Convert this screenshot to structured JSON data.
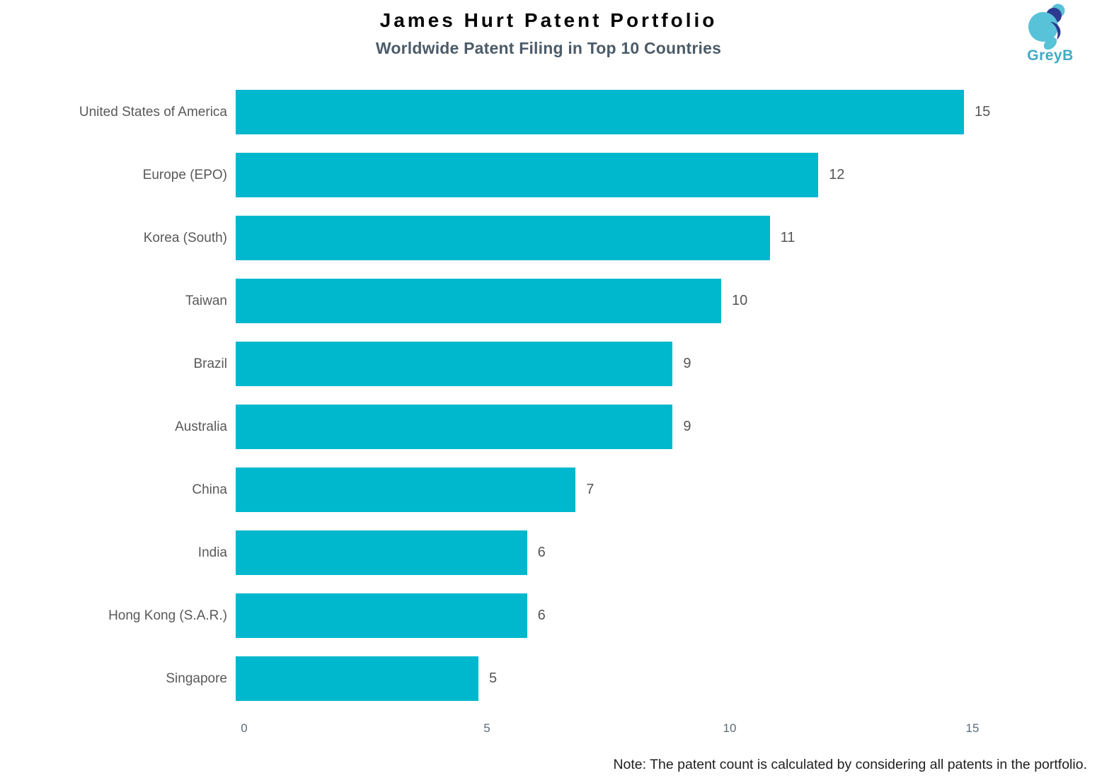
{
  "header": {
    "title": "James Hurt Patent Portfolio",
    "subtitle": "Worldwide Patent Filing in Top 10 Countries",
    "logo_text": "GreyB"
  },
  "chart_data": {
    "type": "bar",
    "orientation": "horizontal",
    "title": "James Hurt Patent Portfolio",
    "subtitle": "Worldwide Patent Filing in Top 10 Countries",
    "categories": [
      "United States of America",
      "Europe (EPO)",
      "Korea (South)",
      "Taiwan",
      "Brazil",
      "Australia",
      "China",
      "India",
      "Hong Kong (S.A.R.)",
      "Singapore"
    ],
    "values": [
      15,
      12,
      11,
      10,
      9,
      9,
      7,
      6,
      6,
      5
    ],
    "x_ticks": [
      0,
      5,
      10,
      15
    ],
    "xlim": [
      0,
      15
    ],
    "xlabel": "",
    "ylabel": "",
    "grid": false,
    "legend": false,
    "bar_color": "#00B8CD"
  },
  "note": "Note: The patent count is calculated by considering all patents in the portfolio.",
  "colors": {
    "bar": "#00B8CD",
    "title": "#050505",
    "subtitle": "#4c5b68",
    "category_label": "#595959",
    "value_label": "#565656",
    "tick": "#5b6b7a",
    "logo_light_blue": "#57C2D8",
    "logo_navy": "#2D3A8F",
    "logo_text": "#3fabc5"
  }
}
